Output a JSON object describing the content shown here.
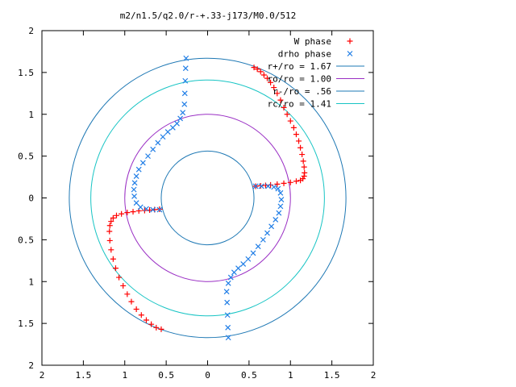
{
  "chart_data": {
    "type": "scatter",
    "title": "m2/n1.5/q2.0/r-+.33-j173/M0.0/512",
    "xlabel": "",
    "ylabel": "",
    "xlim": [
      -2,
      2
    ],
    "ylim": [
      -2,
      2
    ],
    "x_tick_labels": [
      "2",
      "1.5",
      "1",
      "0.5",
      "0",
      "0.5",
      "1",
      "1.5",
      "2"
    ],
    "y_tick_labels": [
      "2",
      "1.5",
      "1",
      "0.5",
      "0",
      "0.5",
      "1",
      "1.5",
      "2"
    ],
    "grid": false,
    "legend_position": "top-right",
    "circles": [
      {
        "label": "r+/ro = 1.67",
        "r": 1.67,
        "color": "#1e78b4"
      },
      {
        "label": "ro/ro = 1.00",
        "r": 1.0,
        "color": "#9a2fc4"
      },
      {
        "label": "r-/ro = .56",
        "r": 0.56,
        "color": "#1e78b4"
      },
      {
        "label": "rc/ro = 1.41",
        "r": 1.41,
        "color": "#17c4c4"
      }
    ],
    "series": [
      {
        "name": "W phase",
        "marker": "plus",
        "color": "#ff0000",
        "x": [
          0.56,
          0.6,
          0.64,
          0.68,
          0.72,
          0.76,
          0.8,
          0.84,
          0.88,
          0.92,
          0.96,
          1.0,
          1.04,
          1.07,
          1.1,
          1.12,
          1.14,
          1.155,
          1.165,
          1.17,
          1.165,
          1.15,
          1.12,
          1.07,
          1.0,
          0.92,
          0.84,
          0.76,
          0.7,
          0.64,
          0.58,
          -0.56,
          -0.62,
          -0.68,
          -0.74,
          -0.8,
          -0.86,
          -0.92,
          -0.97,
          -1.02,
          -1.07,
          -1.11,
          -1.14,
          -1.165,
          -1.18,
          -1.185,
          -1.18,
          -1.165,
          -1.14,
          -1.1,
          -1.04,
          -0.97,
          -0.9,
          -0.83,
          -0.76,
          -0.7,
          -0.64,
          -0.58
        ],
        "y": [
          1.56,
          1.54,
          1.51,
          1.47,
          1.43,
          1.38,
          1.32,
          1.25,
          1.17,
          1.08,
          1.0,
          0.92,
          0.84,
          0.76,
          0.68,
          0.6,
          0.52,
          0.44,
          0.37,
          0.3,
          0.26,
          0.23,
          0.21,
          0.2,
          0.185,
          0.175,
          0.165,
          0.155,
          0.15,
          0.145,
          0.14,
          -1.57,
          -1.55,
          -1.51,
          -1.46,
          -1.4,
          -1.33,
          -1.24,
          -1.15,
          -1.05,
          -0.95,
          -0.84,
          -0.73,
          -0.62,
          -0.51,
          -0.4,
          -0.33,
          -0.28,
          -0.24,
          -0.21,
          -0.19,
          -0.175,
          -0.165,
          -0.155,
          -0.15,
          -0.145,
          -0.14,
          -0.135
        ]
      },
      {
        "name": "drho phase",
        "marker": "cross",
        "color": "#1f7de6",
        "x": [
          -0.26,
          -0.265,
          -0.27,
          -0.275,
          -0.28,
          -0.3,
          -0.33,
          -0.37,
          -0.42,
          -0.48,
          -0.54,
          -0.6,
          -0.66,
          -0.72,
          -0.78,
          -0.83,
          -0.86,
          -0.88,
          -0.89,
          -0.885,
          -0.86,
          -0.81,
          -0.74,
          -0.66,
          -0.58,
          0.25,
          0.245,
          0.24,
          0.235,
          0.23,
          0.25,
          0.28,
          0.32,
          0.37,
          0.43,
          0.49,
          0.55,
          0.61,
          0.67,
          0.72,
          0.77,
          0.82,
          0.86,
          0.88,
          0.89,
          0.88,
          0.85,
          0.8,
          0.73,
          0.65,
          0.58
        ],
        "y": [
          1.67,
          1.55,
          1.4,
          1.25,
          1.12,
          1.02,
          0.95,
          0.89,
          0.84,
          0.79,
          0.73,
          0.66,
          0.58,
          0.5,
          0.42,
          0.34,
          0.26,
          0.18,
          0.1,
          0.02,
          -0.06,
          -0.11,
          -0.13,
          -0.14,
          -0.14,
          -1.67,
          -1.55,
          -1.4,
          -1.25,
          -1.12,
          -1.02,
          -0.95,
          -0.89,
          -0.84,
          -0.79,
          -0.73,
          -0.66,
          -0.58,
          -0.5,
          -0.42,
          -0.34,
          -0.26,
          -0.18,
          -0.1,
          -0.02,
          0.06,
          0.11,
          0.13,
          0.14,
          0.14,
          0.14
        ]
      }
    ]
  }
}
